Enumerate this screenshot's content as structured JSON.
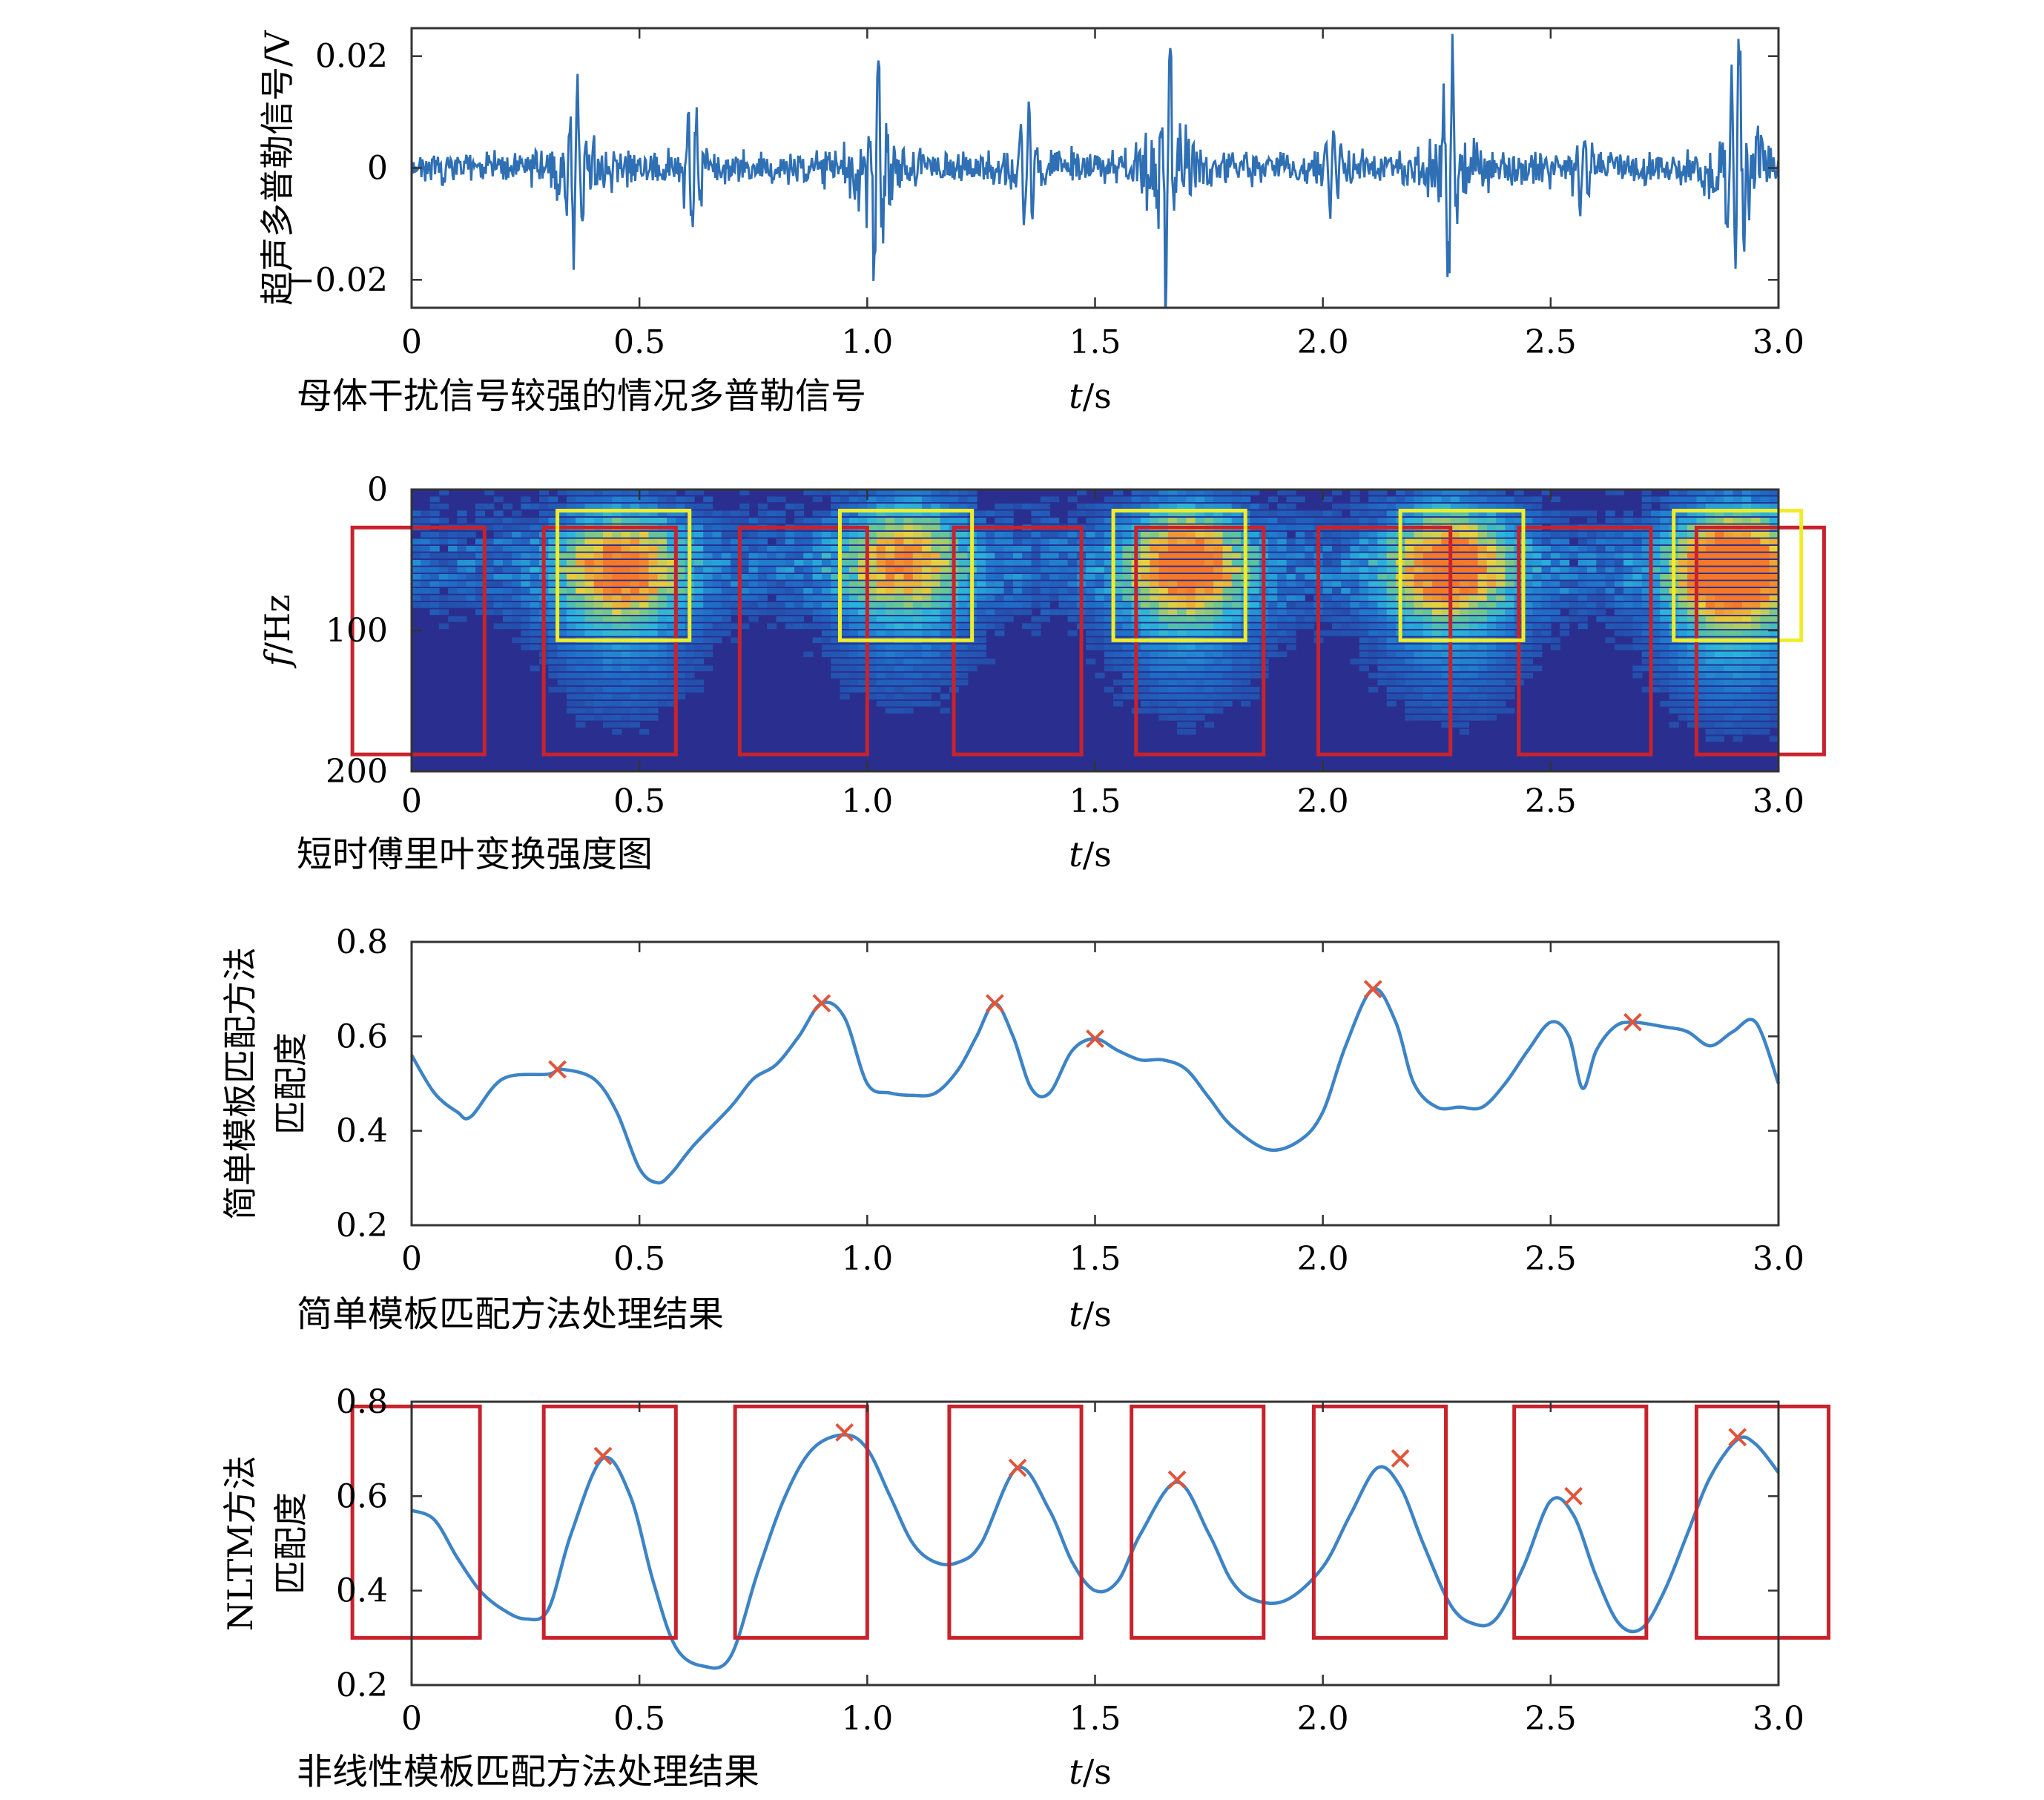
{
  "colors": {
    "signal": "#2f6fb4",
    "curve": "#3d84c6",
    "peak_marker": "#e0553a",
    "red_box": "#c8232c",
    "yellow_box": "#f0ec2a",
    "spectrogram_background": "#2a2f8f"
  },
  "chart_data": [
    {
      "type": "line",
      "ylabel": "超声多普勒信号/V",
      "xlabel": "t/s",
      "caption": "母体干扰信号较强的情况多普勒信号",
      "xlim": [
        0,
        3.0
      ],
      "ylim": [
        -0.025,
        0.025
      ],
      "xticks": [
        "0",
        "0.5",
        "1.0",
        "1.5",
        "2.0",
        "2.5",
        "3.0"
      ],
      "yticks": [
        "0.02",
        "0",
        "−0.02"
      ],
      "ytick_values": [
        0.02,
        0,
        -0.02
      ],
      "noise_level": 0.0025,
      "bursts": [
        {
          "t": 0.36,
          "amp": 0.016
        },
        {
          "t": 0.62,
          "amp": 0.01
        },
        {
          "t": 1.02,
          "amp": 0.019
        },
        {
          "t": 1.35,
          "amp": 0.01
        },
        {
          "t": 1.66,
          "amp": 0.023
        },
        {
          "t": 2.02,
          "amp": 0.006
        },
        {
          "t": 2.28,
          "amp": 0.02
        },
        {
          "t": 2.57,
          "amp": 0.007
        },
        {
          "t": 2.91,
          "amp": 0.026
        }
      ]
    },
    {
      "type": "heatmap",
      "ylabel": "f/Hz",
      "xlabel": "t/s",
      "caption": "短时傅里叶变换强度图",
      "xlim": [
        0,
        3.0
      ],
      "ylim": [
        0,
        200
      ],
      "xticks": [
        "0",
        "0.5",
        "1.0",
        "1.5",
        "2.0",
        "2.5",
        "3.0"
      ],
      "yticks": [
        "0",
        "100",
        "200"
      ],
      "ytick_values": [
        0,
        100,
        200
      ],
      "hotspots": [
        {
          "t": 0.46,
          "f": 55,
          "intensity": 0.75
        },
        {
          "t": 1.08,
          "f": 48,
          "intensity": 0.65
        },
        {
          "t": 1.7,
          "f": 52,
          "intensity": 0.8
        },
        {
          "t": 2.28,
          "f": 52,
          "intensity": 0.8
        },
        {
          "t": 2.9,
          "f": 55,
          "intensity": 1.0
        }
      ],
      "yellow_boxes": [
        {
          "t0": 0.32,
          "t1": 0.61,
          "f0": 15,
          "f1": 107
        },
        {
          "t0": 0.94,
          "t1": 1.23,
          "f0": 15,
          "f1": 107
        },
        {
          "t0": 1.54,
          "t1": 1.83,
          "f0": 15,
          "f1": 107
        },
        {
          "t0": 2.17,
          "t1": 2.44,
          "f0": 15,
          "f1": 107
        },
        {
          "t0": 2.77,
          "t1": 3.05,
          "f0": 15,
          "f1": 107
        }
      ],
      "red_boxes": [
        {
          "t0": -0.13,
          "t1": 0.16,
          "f0": 27,
          "f1": 188
        },
        {
          "t0": 0.29,
          "t1": 0.58,
          "f0": 27,
          "f1": 188
        },
        {
          "t0": 0.72,
          "t1": 1.0,
          "f0": 27,
          "f1": 188
        },
        {
          "t0": 1.19,
          "t1": 1.47,
          "f0": 27,
          "f1": 188
        },
        {
          "t0": 1.59,
          "t1": 1.87,
          "f0": 27,
          "f1": 188
        },
        {
          "t0": 1.99,
          "t1": 2.28,
          "f0": 27,
          "f1": 188
        },
        {
          "t0": 2.43,
          "t1": 2.72,
          "f0": 27,
          "f1": 188
        },
        {
          "t0": 2.82,
          "t1": 3.1,
          "f0": 27,
          "f1": 188
        }
      ]
    },
    {
      "type": "line",
      "ylabel": "简单模板匹配方法 匹配度",
      "xlabel": "t/s",
      "caption": "简单模板匹配方法处理结果",
      "xlim": [
        0,
        3.0
      ],
      "ylim": [
        0.2,
        0.8
      ],
      "xticks": [
        "0",
        "0.5",
        "1.0",
        "1.5",
        "2.0",
        "2.5",
        "3.0"
      ],
      "yticks": [
        "0.8",
        "0.6",
        "0.4",
        "0.2"
      ],
      "ytick_values": [
        0.8,
        0.6,
        0.4,
        0.2
      ],
      "x": [
        0,
        0.05,
        0.1,
        0.13,
        0.2,
        0.3,
        0.33,
        0.4,
        0.45,
        0.5,
        0.54,
        0.57,
        0.62,
        0.7,
        0.75,
        0.8,
        0.85,
        0.9,
        0.95,
        1.0,
        1.05,
        1.1,
        1.15,
        1.2,
        1.24,
        1.28,
        1.32,
        1.36,
        1.4,
        1.45,
        1.5,
        1.55,
        1.6,
        1.65,
        1.7,
        1.75,
        1.8,
        1.88,
        1.95,
        2.0,
        2.05,
        2.11,
        2.16,
        2.2,
        2.25,
        2.3,
        2.35,
        2.4,
        2.45,
        2.5,
        2.54,
        2.57,
        2.6,
        2.64,
        2.68,
        2.75,
        2.8,
        2.85,
        2.9,
        2.95,
        3.0
      ],
      "y": [
        0.56,
        0.48,
        0.44,
        0.43,
        0.51,
        0.52,
        0.53,
        0.51,
        0.44,
        0.32,
        0.29,
        0.31,
        0.37,
        0.45,
        0.51,
        0.54,
        0.6,
        0.67,
        0.64,
        0.5,
        0.48,
        0.475,
        0.48,
        0.53,
        0.6,
        0.67,
        0.6,
        0.49,
        0.48,
        0.57,
        0.595,
        0.57,
        0.55,
        0.55,
        0.53,
        0.47,
        0.41,
        0.36,
        0.38,
        0.44,
        0.58,
        0.7,
        0.63,
        0.5,
        0.45,
        0.45,
        0.45,
        0.5,
        0.57,
        0.63,
        0.6,
        0.49,
        0.57,
        0.62,
        0.63,
        0.62,
        0.61,
        0.58,
        0.61,
        0.63,
        0.5
      ],
      "peaks": [
        {
          "x": 0.32,
          "y": 0.53
        },
        {
          "x": 0.9,
          "y": 0.67
        },
        {
          "x": 1.28,
          "y": 0.67
        },
        {
          "x": 1.5,
          "y": 0.595
        },
        {
          "x": 2.11,
          "y": 0.7
        },
        {
          "x": 2.68,
          "y": 0.63
        }
      ]
    },
    {
      "type": "line",
      "ylabel": "NLTM方法 匹配度",
      "xlabel": "t/s",
      "caption": "非线性模板匹配方法处理结果",
      "xlim": [
        0,
        3.0
      ],
      "ylim": [
        0.2,
        0.8
      ],
      "xticks": [
        "0",
        "0.5",
        "1.0",
        "1.5",
        "2.0",
        "2.5",
        "3.0"
      ],
      "yticks": [
        "0.8",
        "0.6",
        "0.4",
        "0.2"
      ],
      "ytick_values": [
        0.8,
        0.6,
        0.4,
        0.2
      ],
      "x": [
        0,
        0.05,
        0.1,
        0.15,
        0.2,
        0.25,
        0.3,
        0.35,
        0.42,
        0.48,
        0.53,
        0.58,
        0.64,
        0.7,
        0.76,
        0.82,
        0.88,
        0.95,
        1.0,
        1.05,
        1.1,
        1.15,
        1.2,
        1.25,
        1.33,
        1.4,
        1.45,
        1.5,
        1.55,
        1.6,
        1.68,
        1.75,
        1.8,
        1.85,
        1.92,
        2.0,
        2.06,
        2.12,
        2.17,
        2.22,
        2.28,
        2.33,
        2.38,
        2.44,
        2.5,
        2.55,
        2.6,
        2.65,
        2.7,
        2.75,
        2.8,
        2.85,
        2.91,
        2.95,
        3.0
      ],
      "y": [
        0.57,
        0.55,
        0.47,
        0.4,
        0.36,
        0.34,
        0.36,
        0.52,
        0.68,
        0.6,
        0.42,
        0.28,
        0.24,
        0.26,
        0.44,
        0.6,
        0.7,
        0.73,
        0.7,
        0.6,
        0.5,
        0.46,
        0.46,
        0.5,
        0.66,
        0.57,
        0.46,
        0.4,
        0.42,
        0.52,
        0.63,
        0.52,
        0.42,
        0.38,
        0.38,
        0.45,
        0.56,
        0.66,
        0.62,
        0.5,
        0.37,
        0.33,
        0.34,
        0.45,
        0.59,
        0.56,
        0.43,
        0.33,
        0.32,
        0.4,
        0.52,
        0.64,
        0.72,
        0.71,
        0.65
      ],
      "peaks": [
        {
          "x": 0.42,
          "y": 0.685
        },
        {
          "x": 0.95,
          "y": 0.735
        },
        {
          "x": 1.33,
          "y": 0.66
        },
        {
          "x": 1.68,
          "y": 0.635
        },
        {
          "x": 2.17,
          "y": 0.68
        },
        {
          "x": 2.55,
          "y": 0.6
        },
        {
          "x": 2.91,
          "y": 0.725
        }
      ],
      "red_boxes": [
        {
          "t0": -0.13,
          "t1": 0.15,
          "v0": 0.79,
          "v1": 0.3
        },
        {
          "t0": 0.29,
          "t1": 0.58,
          "v0": 0.79,
          "v1": 0.3
        },
        {
          "t0": 0.71,
          "t1": 1.0,
          "v0": 0.79,
          "v1": 0.3
        },
        {
          "t0": 1.18,
          "t1": 1.47,
          "v0": 0.79,
          "v1": 0.3
        },
        {
          "t0": 1.58,
          "t1": 1.87,
          "v0": 0.79,
          "v1": 0.3
        },
        {
          "t0": 1.98,
          "t1": 2.27,
          "v0": 0.79,
          "v1": 0.3
        },
        {
          "t0": 2.42,
          "t1": 2.71,
          "v0": 0.79,
          "v1": 0.3
        },
        {
          "t0": 2.82,
          "t1": 3.11,
          "v0": 0.79,
          "v1": 0.3
        }
      ]
    }
  ]
}
